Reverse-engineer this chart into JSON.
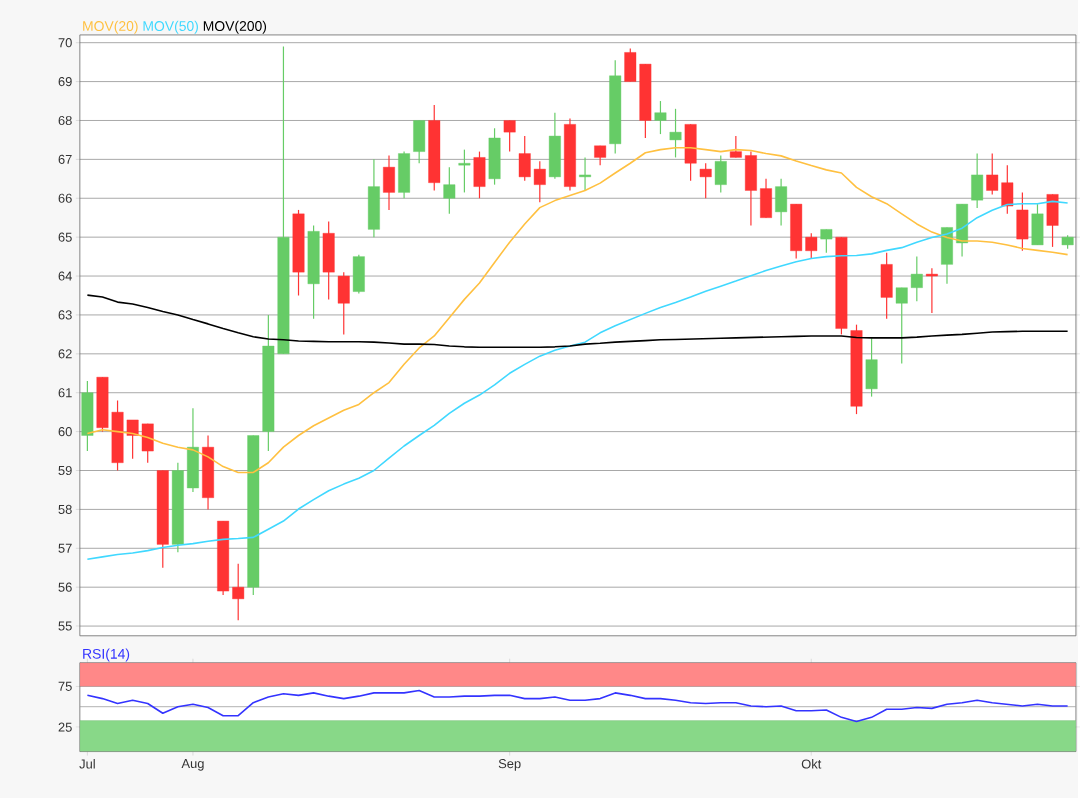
{
  "chart_data": [
    {
      "type": "candlestick",
      "categories": [
        null,
        null,
        null,
        null,
        null,
        null,
        null,
        null,
        null,
        null,
        null,
        null,
        null,
        null,
        null,
        null,
        null,
        null,
        null,
        null,
        null,
        null,
        null,
        null,
        null,
        null,
        null,
        null,
        null,
        null,
        null,
        null,
        null,
        null,
        null,
        null,
        null,
        null,
        null,
        null,
        null,
        null,
        null,
        null,
        null,
        null,
        null,
        null,
        null,
        null,
        null,
        null,
        null,
        null,
        null,
        null,
        null,
        null,
        null,
        null,
        null,
        null,
        null,
        null,
        null,
        null
      ],
      "ohlc": [
        [
          59.9,
          61.3,
          59.5,
          61.0
        ],
        [
          61.4,
          61.4,
          60.0,
          60.1
        ],
        [
          60.5,
          60.8,
          59.0,
          59.2
        ],
        [
          60.3,
          60.3,
          59.3,
          59.9
        ],
        [
          60.2,
          60.2,
          59.2,
          59.5
        ],
        [
          59.0,
          59.0,
          56.5,
          57.1
        ],
        [
          57.1,
          59.2,
          56.9,
          59.0
        ],
        [
          58.55,
          60.6,
          58.45,
          59.6
        ],
        [
          59.6,
          59.9,
          58.0,
          58.3
        ],
        [
          57.7,
          57.7,
          55.8,
          55.9
        ],
        [
          56.0,
          56.6,
          55.15,
          55.7
        ],
        [
          56.0,
          59.9,
          55.8,
          59.9
        ],
        [
          60.0,
          63.0,
          59.5,
          62.2
        ],
        [
          62.0,
          69.9,
          62.0,
          65.0
        ],
        [
          65.6,
          65.7,
          63.5,
          64.1
        ],
        [
          63.8,
          65.3,
          62.9,
          65.15
        ],
        [
          65.1,
          65.4,
          63.4,
          64.1
        ],
        [
          64.0,
          64.1,
          62.5,
          63.3
        ],
        [
          63.6,
          64.55,
          63.55,
          64.5
        ],
        [
          65.2,
          67.0,
          65.0,
          66.3
        ],
        [
          66.8,
          67.1,
          65.7,
          66.15
        ],
        [
          66.15,
          67.2,
          66.0,
          67.15
        ],
        [
          67.2,
          68.0,
          66.9,
          68.0
        ],
        [
          68.0,
          68.4,
          66.2,
          66.4
        ],
        [
          66.0,
          66.8,
          65.6,
          66.35
        ],
        [
          66.85,
          67.25,
          66.15,
          66.9
        ],
        [
          67.05,
          67.2,
          66.0,
          66.3
        ],
        [
          66.5,
          67.8,
          66.35,
          67.55
        ],
        [
          68.0,
          68.0,
          67.2,
          67.7
        ],
        [
          67.15,
          67.6,
          66.45,
          66.55
        ],
        [
          66.75,
          66.95,
          65.9,
          66.35
        ],
        [
          66.55,
          68.2,
          66.5,
          67.6
        ],
        [
          67.9,
          68.05,
          66.2,
          66.3
        ],
        [
          66.55,
          67.05,
          66.2,
          66.6
        ],
        [
          67.35,
          67.35,
          66.85,
          67.05
        ],
        [
          67.4,
          69.55,
          67.15,
          69.15
        ],
        [
          69.75,
          69.85,
          69.0,
          69.0
        ],
        [
          69.45,
          69.45,
          67.55,
          68.0
        ],
        [
          68.0,
          68.5,
          67.65,
          68.2
        ],
        [
          67.5,
          68.3,
          67.05,
          67.7
        ],
        [
          67.9,
          67.9,
          66.45,
          66.9
        ],
        [
          66.75,
          66.9,
          66.0,
          66.55
        ],
        [
          66.35,
          67.1,
          66.15,
          66.95
        ],
        [
          67.2,
          67.6,
          67.05,
          67.05
        ],
        [
          67.1,
          67.2,
          65.3,
          66.2
        ],
        [
          66.25,
          66.5,
          65.5,
          65.5
        ],
        [
          65.65,
          66.5,
          65.3,
          66.3
        ],
        [
          65.85,
          65.85,
          64.45,
          64.65
        ],
        [
          65.0,
          65.1,
          64.45,
          64.65
        ],
        [
          64.95,
          65.2,
          64.6,
          65.2
        ],
        [
          65.0,
          65.0,
          62.5,
          62.65
        ],
        [
          62.6,
          62.75,
          60.45,
          60.65
        ],
        [
          61.1,
          62.4,
          60.9,
          61.85
        ],
        [
          64.3,
          64.6,
          62.9,
          63.45
        ],
        [
          63.3,
          63.7,
          61.75,
          63.7
        ],
        [
          63.7,
          64.5,
          63.35,
          64.05
        ],
        [
          64.05,
          64.2,
          63.05,
          64.0
        ],
        [
          64.3,
          65.25,
          63.8,
          65.25
        ],
        [
          64.85,
          65.85,
          64.5,
          65.85
        ],
        [
          65.95,
          67.15,
          65.75,
          66.6
        ],
        [
          66.6,
          67.15,
          66.1,
          66.2
        ],
        [
          66.4,
          66.85,
          65.6,
          65.8
        ],
        [
          65.7,
          66.15,
          64.65,
          64.95
        ],
        [
          64.8,
          65.85,
          64.8,
          65.6
        ],
        [
          66.1,
          66.1,
          64.75,
          65.3
        ],
        [
          64.8,
          65.05,
          64.7,
          65.0
        ]
      ],
      "colors": [
        "#66cc66",
        "#ff3333",
        "#ff3333",
        "#ff3333",
        "#ff3333",
        "#ff3333",
        "#66cc66",
        "#66cc66",
        "#ff3333",
        "#ff3333",
        "#ff3333",
        "#66cc66",
        "#66cc66",
        "#66cc66",
        "#ff3333",
        "#66cc66",
        "#ff3333",
        "#ff3333",
        "#66cc66",
        "#66cc66",
        "#ff3333",
        "#66cc66",
        "#66cc66",
        "#ff3333",
        "#66cc66",
        "#66cc66",
        "#ff3333",
        "#66cc66",
        "#ff3333",
        "#ff3333",
        "#ff3333",
        "#66cc66",
        "#ff3333",
        "#66cc66",
        "#ff3333",
        "#66cc66",
        "#ff3333",
        "#ff3333",
        "#66cc66",
        "#66cc66",
        "#ff3333",
        "#ff3333",
        "#66cc66",
        "#ff3333",
        "#ff3333",
        "#ff3333",
        "#66cc66",
        "#ff3333",
        "#ff3333",
        "#66cc66",
        "#ff3333",
        "#ff3333",
        "#66cc66",
        "#ff3333",
        "#66cc66",
        "#66cc66",
        "#ff3333",
        "#66cc66",
        "#66cc66",
        "#66cc66",
        "#ff3333",
        "#ff3333",
        "#ff3333",
        "#66cc66",
        "#ff3333",
        "#66cc66"
      ],
      "series": [
        {
          "name": "MOV(20)",
          "type": "line",
          "color": "#ffc040",
          "values": [
            59.95,
            60.05,
            60.0,
            59.95,
            59.85,
            59.7,
            59.6,
            59.53,
            59.35,
            59.1,
            58.95,
            58.95,
            59.2,
            59.6,
            59.9,
            60.15,
            60.35,
            60.55,
            60.7,
            61.0,
            61.26,
            61.73,
            62.15,
            62.46,
            62.93,
            63.4,
            63.82,
            64.35,
            64.87,
            65.34,
            65.76,
            65.94,
            66.07,
            66.2,
            66.39,
            66.65,
            66.9,
            67.17,
            67.25,
            67.3,
            67.3,
            67.25,
            67.2,
            67.25,
            67.23,
            67.15,
            67.09,
            66.96,
            66.84,
            66.73,
            66.65,
            66.28,
            66.04,
            65.86,
            65.6,
            65.34,
            65.13,
            64.99,
            64.9,
            64.9,
            64.87,
            64.8,
            64.71,
            64.66,
            64.61,
            64.55
          ]
        },
        {
          "name": "MOV(50)",
          "type": "line",
          "color": "#40d8ff",
          "values": [
            56.72,
            56.78,
            56.84,
            56.88,
            56.94,
            57.02,
            57.08,
            57.12,
            57.18,
            57.23,
            57.25,
            57.28,
            57.49,
            57.7,
            58.01,
            58.25,
            58.48,
            58.65,
            58.8,
            59.0,
            59.32,
            59.63,
            59.9,
            60.16,
            60.47,
            60.73,
            60.94,
            61.2,
            61.5,
            61.73,
            61.94,
            62.09,
            62.2,
            62.3,
            62.54,
            62.72,
            62.88,
            63.04,
            63.19,
            63.32,
            63.46,
            63.61,
            63.74,
            63.87,
            64.01,
            64.14,
            64.26,
            64.37,
            64.45,
            64.5,
            64.52,
            64.53,
            64.57,
            64.66,
            64.73,
            64.87,
            64.99,
            65.08,
            65.23,
            65.5,
            65.69,
            65.84,
            65.86,
            65.86,
            65.92,
            65.88
          ]
        },
        {
          "name": "MOV(200)",
          "type": "line",
          "color": "#000000",
          "values": [
            63.51,
            63.46,
            63.33,
            63.28,
            63.19,
            63.09,
            63.0,
            62.88,
            62.77,
            62.65,
            62.54,
            62.44,
            62.38,
            62.36,
            62.33,
            62.32,
            62.31,
            62.31,
            62.31,
            62.3,
            62.28,
            62.25,
            62.25,
            62.24,
            62.2,
            62.18,
            62.17,
            62.17,
            62.17,
            62.17,
            62.17,
            62.18,
            62.2,
            62.25,
            62.27,
            62.3,
            62.32,
            62.34,
            62.36,
            62.37,
            62.38,
            62.39,
            62.4,
            62.41,
            62.42,
            62.43,
            62.44,
            62.45,
            62.46,
            62.46,
            62.46,
            62.42,
            62.41,
            62.41,
            62.41,
            62.43,
            62.46,
            62.48,
            62.5,
            62.53,
            62.56,
            62.57,
            62.58,
            62.58,
            62.58,
            62.58
          ]
        }
      ],
      "ylim": [
        54.75,
        70.2
      ],
      "yticks": [
        55,
        56,
        57,
        58,
        59,
        60,
        61,
        62,
        63,
        64,
        65,
        66,
        67,
        68,
        69,
        70
      ],
      "grid": "y",
      "legend": "top left",
      "tick_labels": "y"
    },
    {
      "type": "line",
      "categories": [
        "Jul",
        null,
        null,
        null,
        null,
        null,
        null,
        "Aug",
        null,
        null,
        null,
        null,
        null,
        null,
        null,
        null,
        null,
        null,
        null,
        null,
        null,
        null,
        null,
        null,
        null,
        null,
        null,
        null,
        "Sep",
        null,
        null,
        null,
        null,
        null,
        null,
        null,
        null,
        null,
        null,
        null,
        null,
        null,
        null,
        null,
        null,
        null,
        null,
        null,
        "Okt",
        null,
        null,
        null,
        null,
        null,
        null,
        null,
        null,
        null,
        null,
        null,
        null,
        null,
        null,
        null,
        null,
        null
      ],
      "series": [
        {
          "name": "RSI(14)",
          "color": "#3333ff",
          "values": [
            64,
            60,
            54,
            58,
            54,
            42,
            50,
            53,
            49,
            39,
            39,
            55,
            62,
            66,
            64,
            67,
            63,
            60,
            63,
            67,
            67,
            67,
            70,
            62,
            62,
            63,
            63,
            64,
            64,
            60,
            60,
            62,
            58,
            58,
            60,
            67,
            64,
            60,
            60,
            58,
            55,
            54,
            55,
            55,
            51,
            50,
            51,
            45,
            45,
            46,
            37,
            32,
            37,
            47,
            47,
            49,
            48,
            53,
            55,
            58,
            55,
            53,
            51,
            53,
            51,
            51
          ]
        }
      ],
      "ylim": [
        -5,
        104
      ],
      "yticks": [
        25,
        75
      ],
      "bands": [
        {
          "axis": "y",
          "from": 75,
          "to": 104,
          "color": "#ff8888"
        },
        {
          "axis": "y",
          "from": -5,
          "to": 33,
          "color": "#88d888"
        }
      ],
      "ref_lines": [
        {
          "axis": "y",
          "value": 50,
          "color": "#999999"
        }
      ],
      "grid": "y",
      "legend": "top left"
    }
  ]
}
